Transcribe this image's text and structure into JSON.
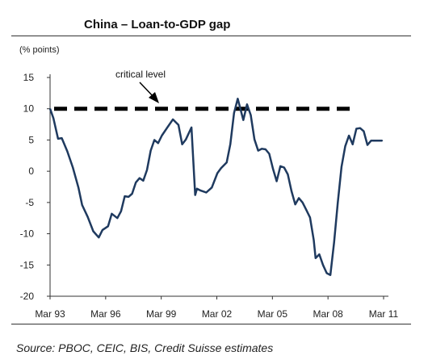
{
  "chart_data": {
    "type": "line",
    "title": "China – Loan-to-GDP gap",
    "ylabel": "(% points)",
    "source": "Source: PBOC, CEIC, BIS, Credit Suisse estimates",
    "ylim": [
      -20,
      15
    ],
    "xlim": [
      1993.17,
      2011.17
    ],
    "y_ticks": [
      15,
      10,
      5,
      0,
      -5,
      -10,
      -15,
      -20
    ],
    "x_ticks": [
      {
        "label": "Mar 93",
        "x": 1993.17
      },
      {
        "label": "Mar 96",
        "x": 1996.17
      },
      {
        "label": "Mar 99",
        "x": 1999.17
      },
      {
        "label": "Mar 02",
        "x": 2002.17
      },
      {
        "label": "Mar 05",
        "x": 2005.17
      },
      {
        "label": "Mar 08",
        "x": 2008.17
      },
      {
        "label": "Mar 11",
        "x": 2011.17
      }
    ],
    "grid": false,
    "critical_level": {
      "label": "critical level",
      "value": 10
    },
    "series": [
      {
        "color": "#1f3a5f",
        "x": [
          1993.17,
          1993.35,
          1993.6,
          1993.8,
          1994.1,
          1994.4,
          1994.7,
          1994.9,
          1995.2,
          1995.5,
          1995.8,
          1996.0,
          1996.3,
          1996.5,
          1996.8,
          1997.0,
          1997.2,
          1997.4,
          1997.6,
          1997.8,
          1998.0,
          1998.2,
          1998.4,
          1998.6,
          1998.8,
          1999.0,
          1999.2,
          1999.5,
          1999.8,
          2000.1,
          2000.3,
          2000.5,
          2000.8,
          2001.0,
          2001.1,
          2001.3,
          2001.6,
          2001.9,
          2002.2,
          2002.4,
          2002.7,
          2002.9,
          2003.1,
          2003.3,
          2003.6,
          2003.8,
          2004.0,
          2004.2,
          2004.4,
          2004.6,
          2004.8,
          2005.0,
          2005.2,
          2005.4,
          2005.6,
          2005.8,
          2006.0,
          2006.2,
          2006.4,
          2006.6,
          2006.8,
          2007.0,
          2007.2,
          2007.4,
          2007.5,
          2007.7,
          2007.9,
          2008.1,
          2008.3,
          2008.5,
          2008.7,
          2008.9,
          2009.1,
          2009.3,
          2009.5,
          2009.7,
          2009.9,
          2010.1,
          2010.3,
          2010.5,
          2010.7,
          2010.9,
          2011.1
        ],
        "values": [
          10,
          8.5,
          5.2,
          5.3,
          3.2,
          0.6,
          -2.6,
          -5.4,
          -7.3,
          -9.6,
          -10.6,
          -9.4,
          -8.8,
          -6.8,
          -7.5,
          -6.4,
          -4.0,
          -4.1,
          -3.6,
          -1.8,
          -1.1,
          -1.5,
          0.2,
          3.3,
          5.0,
          4.5,
          5.7,
          7.0,
          8.3,
          7.4,
          4.3,
          5.1,
          7.0,
          -3.8,
          -2.8,
          -3.1,
          -3.4,
          -2.6,
          -0.3,
          0.5,
          1.4,
          4.3,
          9.3,
          11.6,
          8.2,
          10.7,
          9.0,
          5.1,
          3.3,
          3.6,
          3.5,
          2.8,
          0.4,
          -1.6,
          0.8,
          0.6,
          -0.5,
          -3.2,
          -5.3,
          -4.3,
          -5.0,
          -6.2,
          -7.4,
          -11.0,
          -13.9,
          -13.3,
          -15.0,
          -16.3,
          -16.6,
          -11.4,
          -5.0,
          0.7,
          4.0,
          5.7,
          4.3,
          6.8,
          6.9,
          6.4,
          4.2,
          4.9,
          4.9,
          4.9,
          4.9
        ]
      }
    ]
  }
}
